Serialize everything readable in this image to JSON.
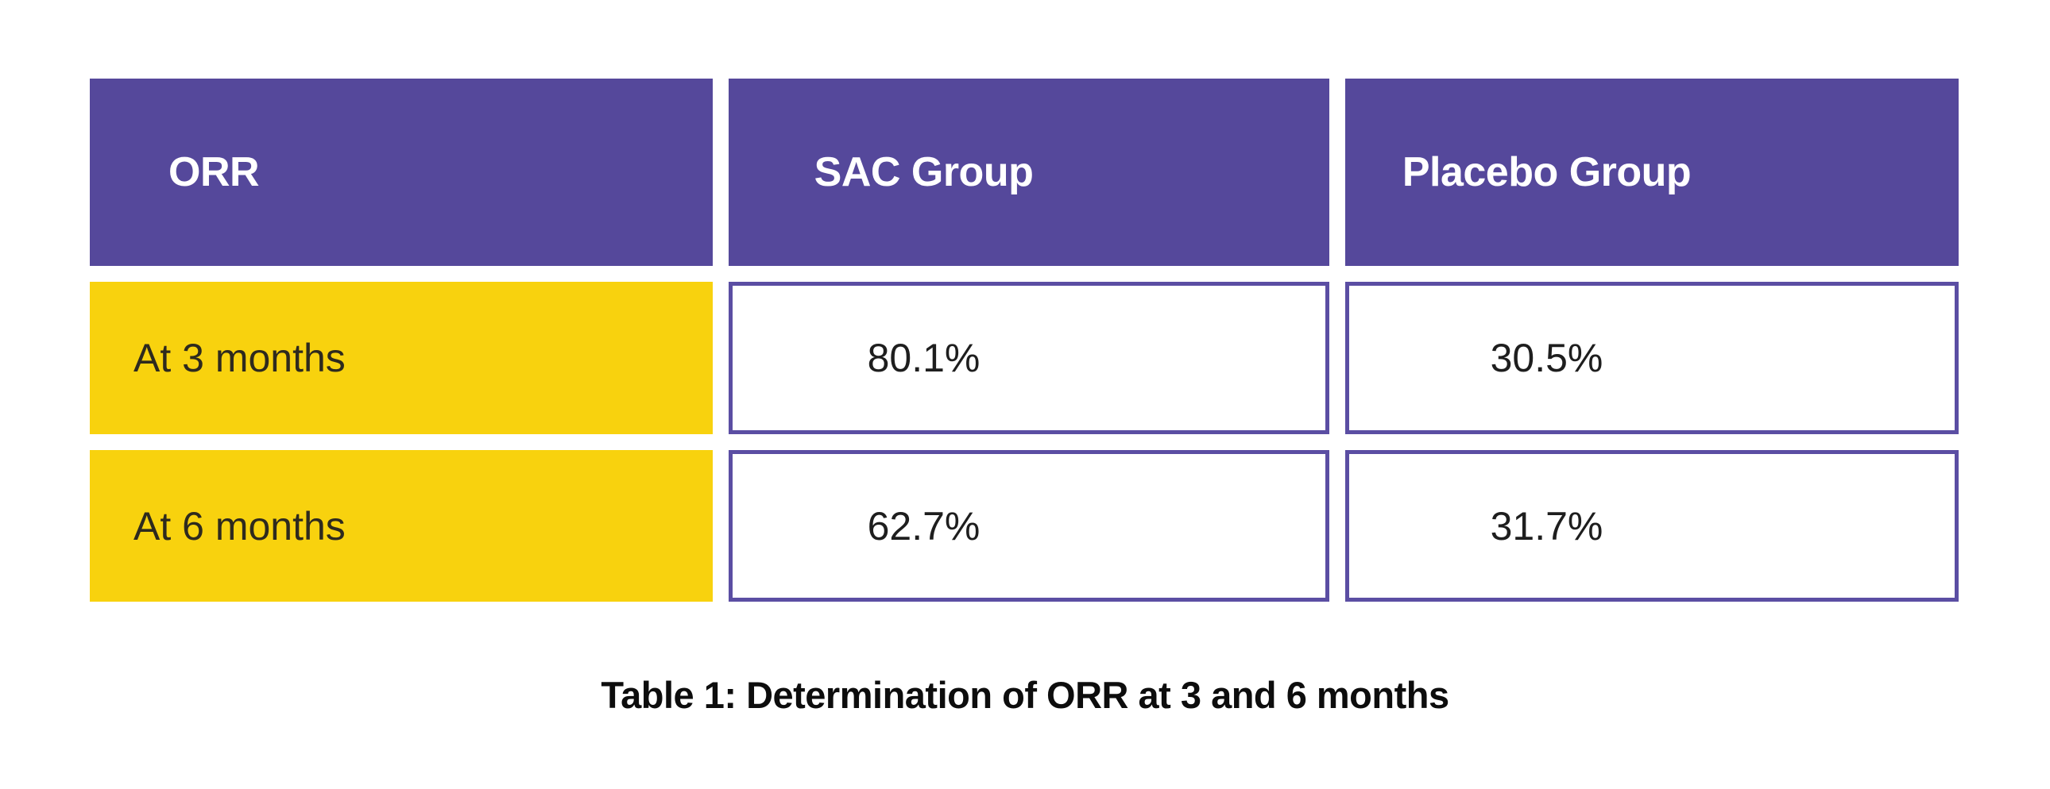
{
  "table": {
    "headers": [
      {
        "label": "ORR"
      },
      {
        "label": "SAC Group"
      },
      {
        "label": "Placebo Group"
      }
    ],
    "rows": [
      {
        "label": "At 3 months",
        "values": [
          "80.1%",
          "30.5%"
        ]
      },
      {
        "label": "At 6 months",
        "values": [
          "62.7%",
          "31.7%"
        ]
      }
    ],
    "caption": "Table 1: Determination of ORR at 3 and 6 months"
  },
  "colors": {
    "header_bg": "#55489b",
    "header_text": "#ffffff",
    "label_bg": "#f8d20e",
    "label_text": "#2e2a1e",
    "value_text": "#1e1e1e",
    "cell_border": "#5b4ea3",
    "caption_text": "#0d0d0d",
    "background": "#ffffff"
  },
  "chart_data": {
    "type": "table",
    "title": "Table 1: Determination of ORR at 3 and 6 months",
    "columns": [
      "ORR",
      "SAC Group",
      "Placebo Group"
    ],
    "rows": [
      [
        "At 3 months",
        "80.1%",
        "30.5%"
      ],
      [
        "At 6 months",
        "62.7%",
        "31.7%"
      ]
    ],
    "series": [
      {
        "name": "SAC Group",
        "values": [
          80.1,
          62.7
        ]
      },
      {
        "name": "Placebo Group",
        "values": [
          30.5,
          31.7
        ]
      }
    ],
    "categories": [
      "At 3 months",
      "At 6 months"
    ],
    "unit": "%"
  }
}
